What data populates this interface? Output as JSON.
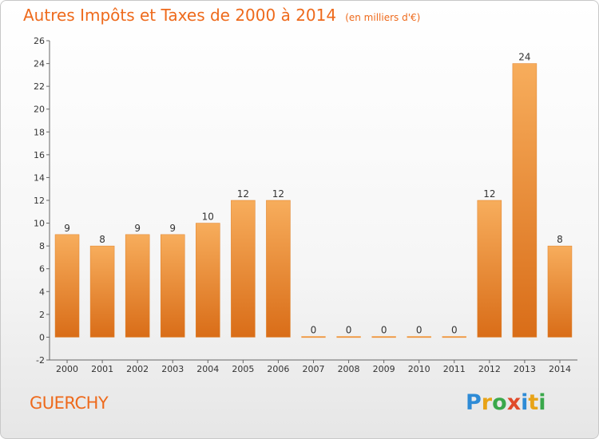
{
  "chart_data": {
    "type": "bar",
    "title": "Autres Impôts et Taxes de 2000 à 2014",
    "subtitle": "(en milliers d'€)",
    "categories": [
      "2000",
      "2001",
      "2002",
      "2003",
      "2004",
      "2005",
      "2006",
      "2007",
      "2008",
      "2009",
      "2010",
      "2011",
      "2012",
      "2013",
      "2014"
    ],
    "values": [
      9,
      8,
      9,
      9,
      10,
      12,
      12,
      0,
      0,
      0,
      0,
      0,
      12,
      24,
      8
    ],
    "ylim": [
      -2,
      26
    ],
    "yticks": [
      -2,
      0,
      2,
      4,
      6,
      8,
      10,
      12,
      14,
      16,
      18,
      20,
      22,
      24,
      26
    ],
    "xlabel": "",
    "ylabel": "",
    "grid": false,
    "bar_color": "#f08a30",
    "bar_color_light": "#f7ad5c",
    "bar_color_dark": "#d96d18"
  },
  "footer": {
    "commune": "GUERCHY"
  },
  "logo": {
    "text": "Proxiti",
    "letters": [
      {
        "ch": "P",
        "color": "#2e8bd6"
      },
      {
        "ch": "r",
        "color": "#e8a317"
      },
      {
        "ch": "o",
        "color": "#3aa84b"
      },
      {
        "ch": "x",
        "color": "#e04a2a"
      },
      {
        "ch": "i",
        "color": "#2e8bd6"
      },
      {
        "ch": "t",
        "color": "#e8a317"
      },
      {
        "ch": "i",
        "color": "#3aa84b"
      }
    ]
  },
  "colors": {
    "accent": "#ee6a1c",
    "axis": "#555555"
  }
}
